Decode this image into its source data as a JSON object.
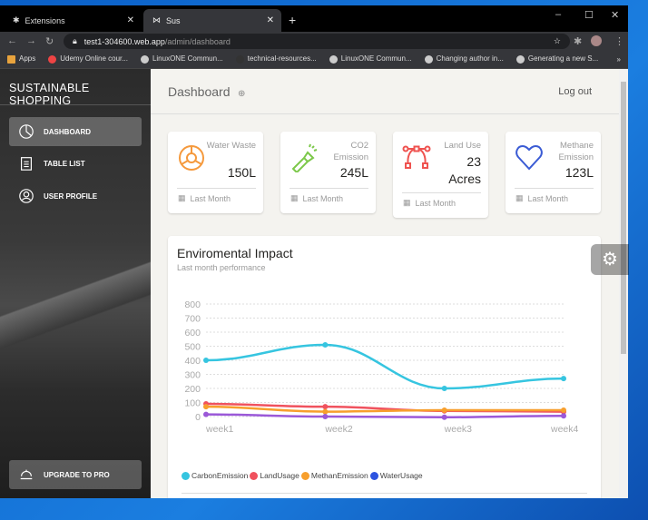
{
  "browser": {
    "tabs": [
      {
        "label": "Extensions"
      },
      {
        "label": "Sus"
      }
    ],
    "url_host": "test1-304600.web.app",
    "url_path": "/admin/dashboard",
    "bookmarks": [
      "Apps",
      "Udemy Online cour...",
      "LinuxONE Commun...",
      "technical-resources...",
      "LinuxONE Commun...",
      "Changing author in...",
      "Generating a new S..."
    ]
  },
  "sidebar": {
    "brand": "SUSTAINABLE SHOPPING",
    "items": [
      {
        "label": "DASHBOARD",
        "icon": "pie-chart-icon",
        "active": true
      },
      {
        "label": "TABLE LIST",
        "icon": "clipboard-icon"
      },
      {
        "label": "USER PROFILE",
        "icon": "user-icon"
      }
    ],
    "upgrade": "UPGRADE TO PRO"
  },
  "header": {
    "title": "Dashboard",
    "logout": "Log out"
  },
  "cards": [
    {
      "label": "Water Waste",
      "value": "150L",
      "footer": "Last Month",
      "icon": "lifebuoy-icon",
      "color": "#f5993c"
    },
    {
      "label": "CO2 Emission",
      "value": "245L",
      "footer": "Last Month",
      "icon": "flashlight-icon",
      "color": "#6bd098"
    },
    {
      "label": "Land Use",
      "value": "23 Acres",
      "footer": "Last Month",
      "icon": "vector-path-icon",
      "color": "#ef5350"
    },
    {
      "label": "Methane Emission",
      "value": "123L",
      "footer": "Last Month",
      "icon": "heart-icon",
      "color": "#3a5bd4"
    }
  ],
  "chart_data": {
    "type": "line",
    "title": "Enviromental Impact",
    "subtitle": "Last month performance",
    "categories": [
      "week1",
      "week2",
      "week3",
      "week4"
    ],
    "yticks": [
      0,
      100,
      200,
      300,
      400,
      500,
      600,
      700,
      800
    ],
    "ylim": [
      0,
      800
    ],
    "grid": true,
    "legend": "bottom-left",
    "series": [
      {
        "name": "CarbonEmission",
        "color": "#36c5e0",
        "values": [
          400,
          510,
          200,
          270
        ]
      },
      {
        "name": "LandUsage",
        "color": "#f0525e",
        "values": [
          90,
          70,
          40,
          35
        ]
      },
      {
        "name": "MethanEmission",
        "color": "#f79f2d",
        "values": [
          70,
          35,
          45,
          45
        ]
      },
      {
        "name": "WaterUsage",
        "color": "#2d54e0",
        "line_color": "#9b59d8",
        "values": [
          15,
          0,
          -5,
          5
        ]
      }
    ]
  }
}
